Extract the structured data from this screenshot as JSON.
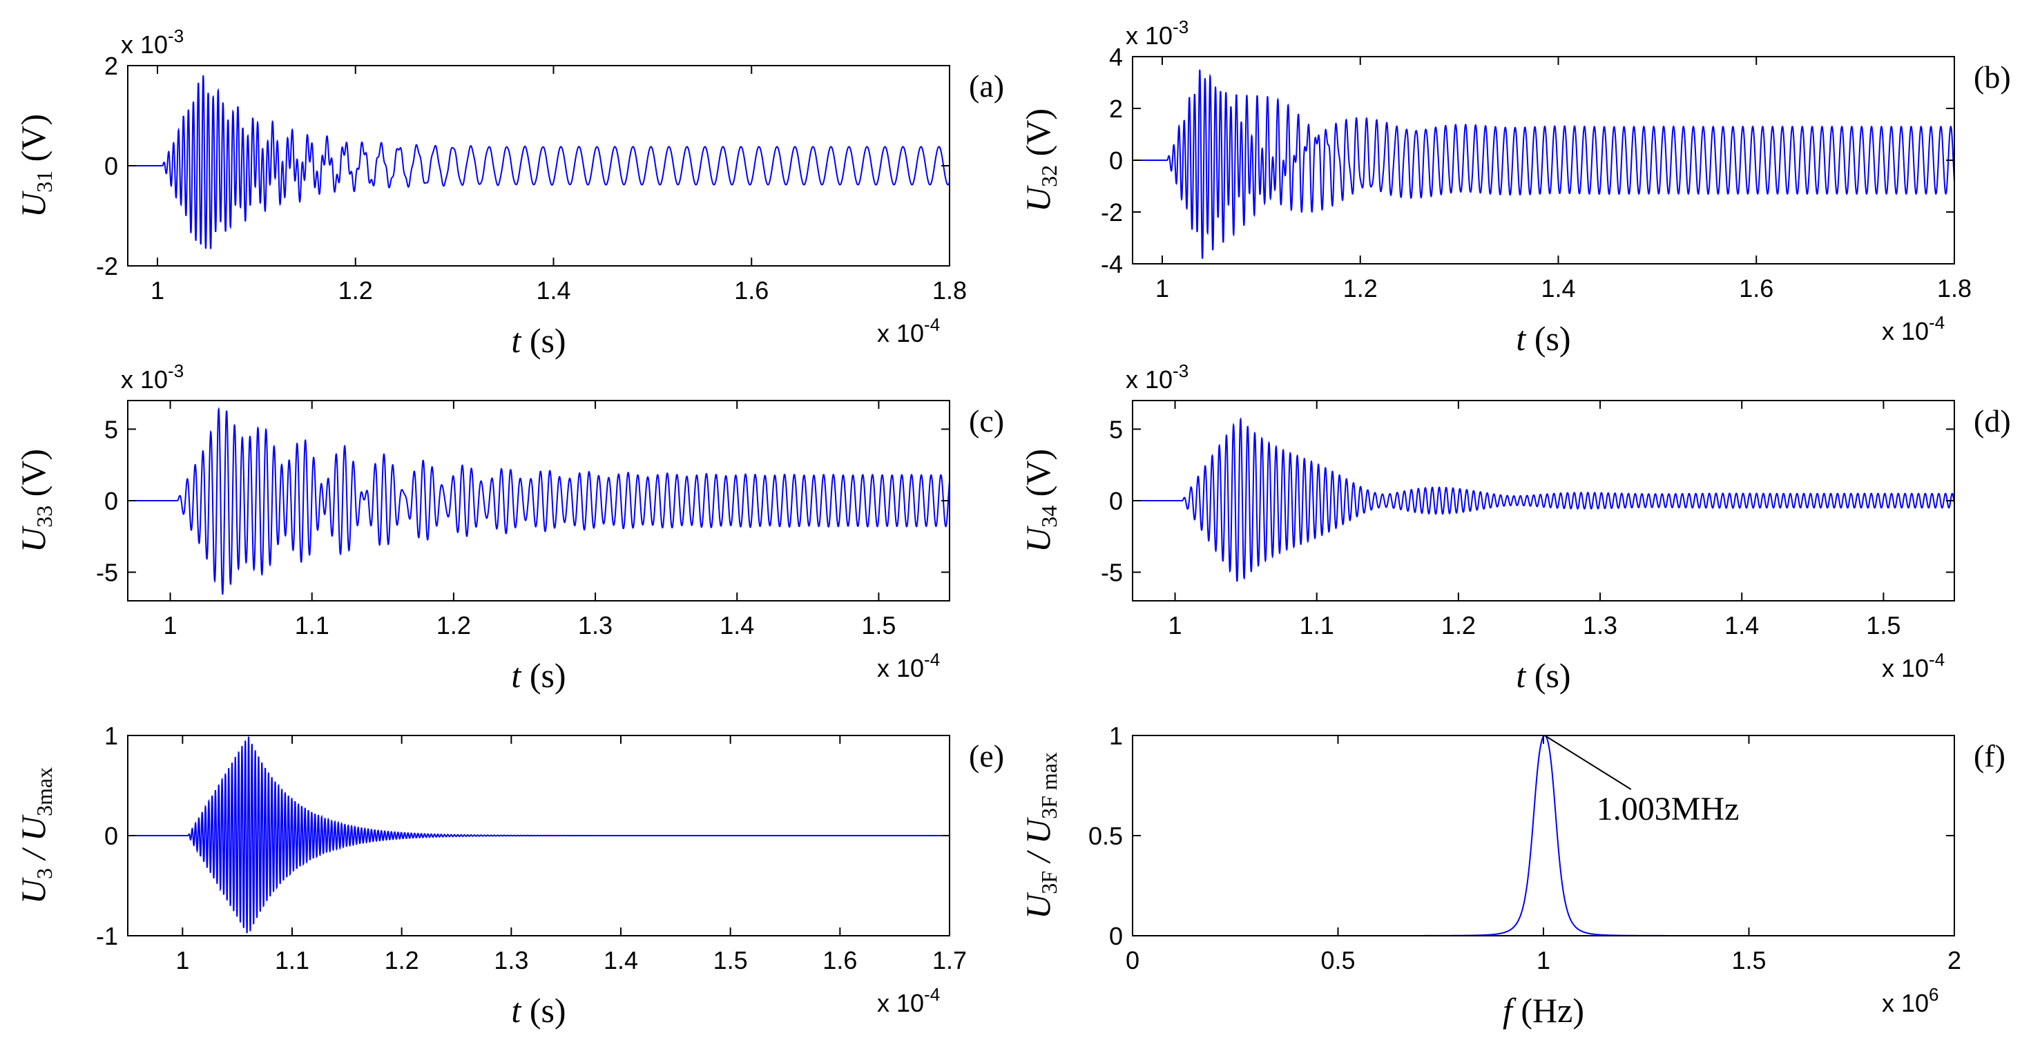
{
  "chart_data": [
    {
      "id": "a",
      "type": "line",
      "panel_label": "(a)",
      "xlabel": "t (s)",
      "ylabel": "U31 (V)",
      "ylabel_main": "U",
      "ylabel_sub": "31",
      "ylabel_unit": " (V)",
      "xlabel_var": "t",
      "xlabel_unit": " (s)",
      "x_exponent": "x 10",
      "x_exponent_power": "-4",
      "y_exponent": "x 10",
      "y_exponent_power": "-3",
      "xlim": [
        0.97,
        1.8
      ],
      "ylim": [
        -2,
        2
      ],
      "xticks": [
        1,
        1.2,
        1.4,
        1.6,
        1.8
      ],
      "xtick_labels": [
        "1",
        "1.2",
        "1.4",
        "1.6",
        "1.8"
      ],
      "yticks": [
        -2,
        0,
        2
      ],
      "ytick_labels": [
        "-2",
        "0",
        "2"
      ],
      "signal": {
        "onset": 1.005,
        "peak": 1.045,
        "freq": 200,
        "amp": 1.75,
        "decay": 0.06,
        "steady_amp": 0.38,
        "steady_freq": 55,
        "tail_end": 1.8
      },
      "color": "#0000ff"
    },
    {
      "id": "b",
      "type": "line",
      "panel_label": "(b)",
      "xlabel": "t (s)",
      "ylabel": "U32 (V)",
      "ylabel_main": "U",
      "ylabel_sub": "32",
      "ylabel_unit": " (V)",
      "xlabel_var": "t",
      "xlabel_unit": " (s)",
      "x_exponent": "x 10",
      "x_exponent_power": "-4",
      "y_exponent": "x 10",
      "y_exponent_power": "-3",
      "xlim": [
        0.97,
        1.8
      ],
      "ylim": [
        -4,
        4
      ],
      "xticks": [
        1,
        1.2,
        1.4,
        1.6,
        1.8
      ],
      "xtick_labels": [
        "1",
        "1.2",
        "1.4",
        "1.6",
        "1.8"
      ],
      "yticks": [
        -4,
        -2,
        0,
        2,
        4
      ],
      "ytick_labels": [
        "-4",
        "-2",
        "0",
        "2",
        "4"
      ],
      "signal": {
        "onset": 1.005,
        "peak": 1.04,
        "freq": 190,
        "amp": 3.5,
        "decay": 0.07,
        "steady_amp": 1.3,
        "steady_freq": 100,
        "tail_end": 1.8
      },
      "color": "#0000ff"
    },
    {
      "id": "c",
      "type": "line",
      "panel_label": "(c)",
      "xlabel": "t (s)",
      "ylabel": "U33 (V)",
      "ylabel_main": "U",
      "ylabel_sub": "33",
      "ylabel_unit": " (V)",
      "xlabel_var": "t",
      "xlabel_unit": " (s)",
      "x_exponent": "x 10",
      "x_exponent_power": "-4",
      "y_exponent": "x 10",
      "y_exponent_power": "-3",
      "xlim": [
        0.97,
        1.55
      ],
      "ylim": [
        -7,
        7
      ],
      "xticks": [
        1,
        1.1,
        1.2,
        1.3,
        1.4,
        1.5
      ],
      "xtick_labels": [
        "1",
        "1.1",
        "1.2",
        "1.3",
        "1.4",
        "1.5"
      ],
      "yticks": [
        -5,
        0,
        5
      ],
      "ytick_labels": [
        "-5",
        "0",
        "5"
      ],
      "signal": {
        "onset": 1.005,
        "peak": 1.035,
        "freq": 180,
        "amp": 6.2,
        "decay": 0.08,
        "steady_amp": 1.8,
        "steady_freq": 145,
        "tail_end": 1.55
      },
      "color": "#0000ff"
    },
    {
      "id": "d",
      "type": "line",
      "panel_label": "(d)",
      "xlabel": "t (s)",
      "ylabel": "U34 (V)",
      "ylabel_main": "U",
      "ylabel_sub": "34",
      "ylabel_unit": " (V)",
      "xlabel_var": "t",
      "xlabel_unit": " (s)",
      "x_exponent": "x 10",
      "x_exponent_power": "-4",
      "y_exponent": "x 10",
      "y_exponent_power": "-3",
      "xlim": [
        0.97,
        1.55
      ],
      "ylim": [
        -7,
        7
      ],
      "xticks": [
        1,
        1.1,
        1.2,
        1.3,
        1.4,
        1.5
      ],
      "xtick_labels": [
        "1",
        "1.1",
        "1.2",
        "1.3",
        "1.4",
        "1.5"
      ],
      "yticks": [
        -5,
        0,
        5
      ],
      "ytick_labels": [
        "-5",
        "0",
        "5"
      ],
      "signal": {
        "onset": 1.005,
        "peak": 1.045,
        "freq": 200,
        "amp": 6.0,
        "decay": 0.055,
        "steady_amp": 0.5,
        "steady_freq": 210,
        "tail_end": 1.55
      },
      "color": "#0000ff"
    },
    {
      "id": "e",
      "type": "line",
      "panel_label": "(e)",
      "xlabel": "t (s)",
      "ylabel": "U3 / U3max",
      "ylabel_main": "U",
      "ylabel_sub": "3",
      "ylabel_mid": " / U",
      "ylabel_sub2": "3max",
      "xlabel_var": "t",
      "xlabel_unit": " (s)",
      "x_exponent": "x 10",
      "x_exponent_power": "-4",
      "xlim": [
        0.95,
        1.7
      ],
      "ylim": [
        -1,
        1
      ],
      "xticks": [
        1,
        1.1,
        1.2,
        1.3,
        1.4,
        1.5,
        1.6,
        1.7
      ],
      "xtick_labels": [
        "1",
        "1.1",
        "1.2",
        "1.3",
        "1.4",
        "1.5",
        "1.6",
        "1.7"
      ],
      "yticks": [
        -1,
        0,
        1
      ],
      "ytick_labels": [
        "-1",
        "0",
        "1"
      ],
      "signal": {
        "onset": 1.005,
        "peak": 1.06,
        "freq": 330,
        "amp": 1.0,
        "decay": 0.04,
        "steady_amp": 0.0,
        "steady_freq": 330,
        "tail_end": 1.495
      },
      "color": "#0000ff"
    },
    {
      "id": "f",
      "type": "line",
      "panel_label": "(f)",
      "xlabel": "f (Hz)",
      "ylabel": "U3F / U3Fmax",
      "ylabel_main": "U",
      "ylabel_sub": "3F",
      "ylabel_mid": " / U",
      "ylabel_sub2": "3F max",
      "xlabel_var": "f",
      "xlabel_unit": " (Hz)",
      "x_exponent": "x 10",
      "x_exponent_power": "6",
      "xlim": [
        0,
        2
      ],
      "ylim": [
        0,
        1
      ],
      "xticks": [
        0,
        0.5,
        1,
        1.5,
        2
      ],
      "xtick_labels": [
        "0",
        "0.5",
        "1",
        "1.5",
        "2"
      ],
      "yticks": [
        0,
        0.5,
        1
      ],
      "ytick_labels": [
        "0",
        "0.5",
        "1"
      ],
      "spectrum": {
        "peak_x": 1.003,
        "peak_y": 1.0,
        "half_width": 0.035
      },
      "annotation": {
        "text": "1.003MHz",
        "x": 1.003,
        "y": 1.0
      },
      "color": "#0000ff"
    }
  ]
}
